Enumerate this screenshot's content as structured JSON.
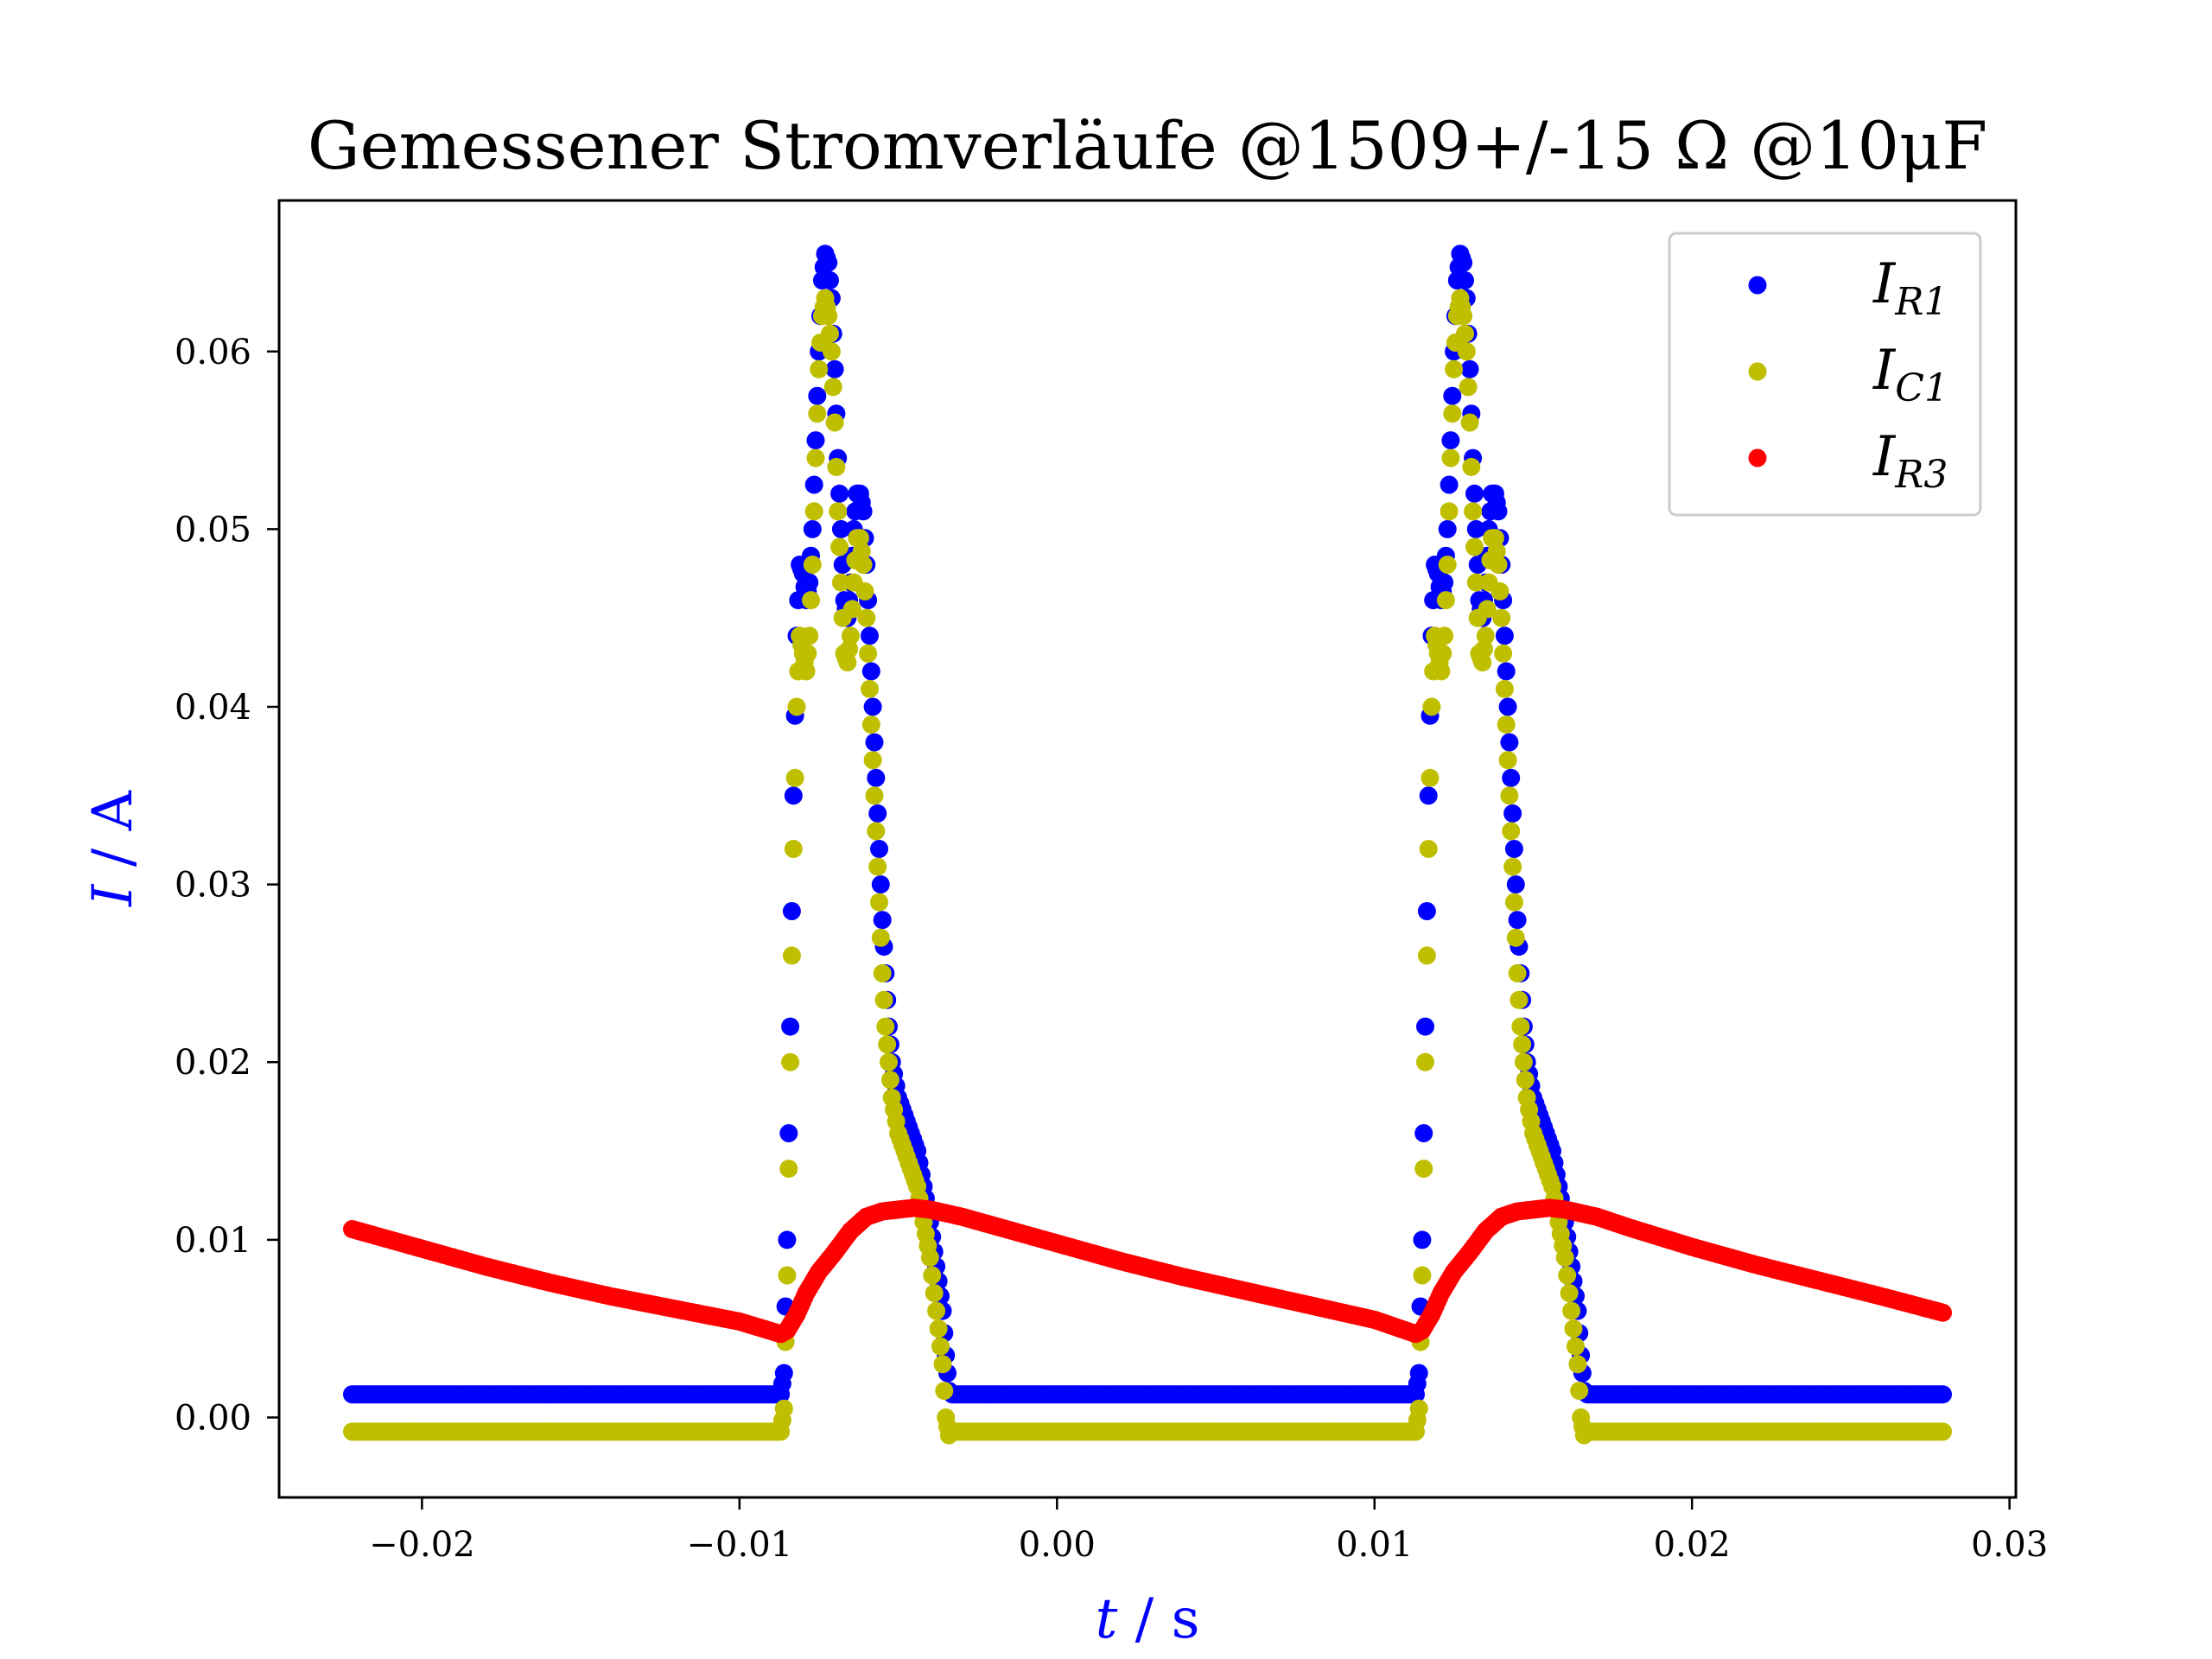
{
  "chart_data": {
    "type": "scatter",
    "title": "Gemessener Stromverläufe @1509+/-15 Ω @10μF",
    "xlabel": {
      "var": "t",
      "unit": "/ s"
    },
    "ylabel": {
      "var": "I",
      "unit": "/ A"
    },
    "xlim": [
      -0.0245,
      0.0302
    ],
    "ylim": [
      -0.0045,
      0.0685
    ],
    "xticks": [
      {
        "value": -0.02,
        "label": "−0.02"
      },
      {
        "value": -0.01,
        "label": "−0.01"
      },
      {
        "value": 0.0,
        "label": "0.00"
      },
      {
        "value": 0.01,
        "label": "0.01"
      },
      {
        "value": 0.02,
        "label": "0.02"
      },
      {
        "value": 0.03,
        "label": "0.03"
      }
    ],
    "yticks": [
      {
        "value": 0.0,
        "label": "0.00"
      },
      {
        "value": 0.01,
        "label": "0.01"
      },
      {
        "value": 0.02,
        "label": "0.02"
      },
      {
        "value": 0.03,
        "label": "0.03"
      },
      {
        "value": 0.04,
        "label": "0.04"
      },
      {
        "value": 0.05,
        "label": "0.05"
      },
      {
        "value": 0.06,
        "label": "0.06"
      }
    ],
    "grid": false,
    "legend_position": "top-right",
    "series": [
      {
        "name": "I_R1",
        "label_main": "I",
        "label_sub": "R1",
        "color": "#0000ff",
        "points": [
          [
            -0.0222,
            0.0013
          ],
          [
            -0.02,
            0.0013
          ],
          [
            -0.015,
            0.0013
          ],
          [
            -0.01,
            0.0013
          ],
          [
            -0.0087,
            0.0013
          ],
          [
            -0.0086,
            0.0025
          ],
          [
            -0.0085,
            0.01
          ],
          [
            -0.0084,
            0.022
          ],
          [
            -0.0083,
            0.035
          ],
          [
            -0.0082,
            0.044
          ],
          [
            -0.0081,
            0.048
          ],
          [
            -0.008,
            0.0475
          ],
          [
            -0.0079,
            0.046
          ],
          [
            -0.0078,
            0.047
          ],
          [
            -0.0077,
            0.05
          ],
          [
            -0.0076,
            0.055
          ],
          [
            -0.0075,
            0.06
          ],
          [
            -0.0074,
            0.064
          ],
          [
            -0.0073,
            0.0655
          ],
          [
            -0.0072,
            0.065
          ],
          [
            -0.0071,
            0.063
          ],
          [
            -0.007,
            0.059
          ],
          [
            -0.0069,
            0.054
          ],
          [
            -0.0068,
            0.05
          ],
          [
            -0.0067,
            0.046
          ],
          [
            -0.0066,
            0.045
          ],
          [
            -0.0065,
            0.047
          ],
          [
            -0.0064,
            0.05
          ],
          [
            -0.0063,
            0.052
          ],
          [
            -0.0062,
            0.052
          ],
          [
            -0.0061,
            0.051
          ],
          [
            -0.006,
            0.048
          ],
          [
            -0.0059,
            0.044
          ],
          [
            -0.0058,
            0.04
          ],
          [
            -0.0057,
            0.036
          ],
          [
            -0.0056,
            0.032
          ],
          [
            -0.0055,
            0.028
          ],
          [
            -0.0054,
            0.025
          ],
          [
            -0.0053,
            0.022
          ],
          [
            -0.0052,
            0.02
          ],
          [
            -0.005,
            0.018
          ],
          [
            -0.0048,
            0.017
          ],
          [
            -0.0046,
            0.016
          ],
          [
            -0.0044,
            0.015
          ],
          [
            -0.0042,
            0.013
          ],
          [
            -0.004,
            0.011
          ],
          [
            -0.0038,
            0.0085
          ],
          [
            -0.0036,
            0.006
          ],
          [
            -0.0035,
            0.0035
          ],
          [
            -0.0034,
            0.0015
          ],
          [
            -0.0033,
            0.0013
          ],
          [
            0.0,
            0.0013
          ],
          [
            0.005,
            0.0013
          ],
          [
            0.01,
            0.0013
          ],
          [
            0.0113,
            0.0013
          ],
          [
            0.0114,
            0.0025
          ],
          [
            0.0115,
            0.01
          ],
          [
            0.0116,
            0.022
          ],
          [
            0.0117,
            0.035
          ],
          [
            0.0118,
            0.044
          ],
          [
            0.0119,
            0.048
          ],
          [
            0.012,
            0.0475
          ],
          [
            0.0121,
            0.046
          ],
          [
            0.0122,
            0.047
          ],
          [
            0.0123,
            0.05
          ],
          [
            0.0124,
            0.055
          ],
          [
            0.0125,
            0.06
          ],
          [
            0.0126,
            0.064
          ],
          [
            0.0127,
            0.0655
          ],
          [
            0.0128,
            0.065
          ],
          [
            0.0129,
            0.063
          ],
          [
            0.013,
            0.059
          ],
          [
            0.0131,
            0.054
          ],
          [
            0.0132,
            0.05
          ],
          [
            0.0133,
            0.046
          ],
          [
            0.0134,
            0.045
          ],
          [
            0.0135,
            0.047
          ],
          [
            0.0136,
            0.05
          ],
          [
            0.0137,
            0.052
          ],
          [
            0.0138,
            0.052
          ],
          [
            0.0139,
            0.051
          ],
          [
            0.014,
            0.048
          ],
          [
            0.0141,
            0.044
          ],
          [
            0.0142,
            0.04
          ],
          [
            0.0143,
            0.036
          ],
          [
            0.0144,
            0.032
          ],
          [
            0.0145,
            0.028
          ],
          [
            0.0146,
            0.025
          ],
          [
            0.0147,
            0.022
          ],
          [
            0.0148,
            0.02
          ],
          [
            0.015,
            0.018
          ],
          [
            0.0152,
            0.017
          ],
          [
            0.0154,
            0.016
          ],
          [
            0.0156,
            0.015
          ],
          [
            0.0158,
            0.013
          ],
          [
            0.016,
            0.011
          ],
          [
            0.0162,
            0.0085
          ],
          [
            0.0164,
            0.006
          ],
          [
            0.0165,
            0.0035
          ],
          [
            0.0166,
            0.0015
          ],
          [
            0.0167,
            0.0013
          ],
          [
            0.02,
            0.0013
          ],
          [
            0.025,
            0.0013
          ],
          [
            0.0279,
            0.0013
          ]
        ]
      },
      {
        "name": "I_C1",
        "label_main": "I",
        "label_sub": "C1",
        "color": "#bfbf00",
        "points": [
          [
            -0.0222,
            -0.0008
          ],
          [
            -0.02,
            -0.0008
          ],
          [
            -0.015,
            -0.0008
          ],
          [
            -0.01,
            -0.0008
          ],
          [
            -0.0087,
            -0.0008
          ],
          [
            -0.0086,
            0.0005
          ],
          [
            -0.0085,
            0.008
          ],
          [
            -0.0084,
            0.02
          ],
          [
            -0.0083,
            0.032
          ],
          [
            -0.0082,
            0.04
          ],
          [
            -0.0081,
            0.044
          ],
          [
            -0.008,
            0.043
          ],
          [
            -0.0079,
            0.042
          ],
          [
            -0.0078,
            0.044
          ],
          [
            -0.0077,
            0.048
          ],
          [
            -0.0076,
            0.054
          ],
          [
            -0.0075,
            0.059
          ],
          [
            -0.0074,
            0.062
          ],
          [
            -0.0073,
            0.063
          ],
          [
            -0.0072,
            0.062
          ],
          [
            -0.0071,
            0.06
          ],
          [
            -0.007,
            0.056
          ],
          [
            -0.0069,
            0.051
          ],
          [
            -0.0068,
            0.047
          ],
          [
            -0.0067,
            0.043
          ],
          [
            -0.0066,
            0.0425
          ],
          [
            -0.0065,
            0.044
          ],
          [
            -0.0064,
            0.047
          ],
          [
            -0.0063,
            0.0495
          ],
          [
            -0.0062,
            0.0495
          ],
          [
            -0.0061,
            0.048
          ],
          [
            -0.006,
            0.045
          ],
          [
            -0.0059,
            0.041
          ],
          [
            -0.0058,
            0.037
          ],
          [
            -0.0057,
            0.033
          ],
          [
            -0.0056,
            0.029
          ],
          [
            -0.0055,
            0.025
          ],
          [
            -0.0054,
            0.022
          ],
          [
            -0.0053,
            0.02
          ],
          [
            -0.0052,
            0.018
          ],
          [
            -0.005,
            0.016
          ],
          [
            -0.0048,
            0.015
          ],
          [
            -0.0046,
            0.014
          ],
          [
            -0.0044,
            0.013
          ],
          [
            -0.0042,
            0.011
          ],
          [
            -0.004,
            0.009
          ],
          [
            -0.0038,
            0.006
          ],
          [
            -0.0036,
            0.003
          ],
          [
            -0.0035,
            0.0
          ],
          [
            -0.0034,
            -0.001
          ],
          [
            -0.0033,
            -0.0008
          ],
          [
            0.0,
            -0.0008
          ],
          [
            0.005,
            -0.0008
          ],
          [
            0.01,
            -0.0008
          ],
          [
            0.0113,
            -0.0008
          ],
          [
            0.0114,
            0.0005
          ],
          [
            0.0115,
            0.008
          ],
          [
            0.0116,
            0.02
          ],
          [
            0.0117,
            0.032
          ],
          [
            0.0118,
            0.04
          ],
          [
            0.0119,
            0.044
          ],
          [
            0.012,
            0.043
          ],
          [
            0.0121,
            0.042
          ],
          [
            0.0122,
            0.044
          ],
          [
            0.0123,
            0.048
          ],
          [
            0.0124,
            0.054
          ],
          [
            0.0125,
            0.059
          ],
          [
            0.0126,
            0.062
          ],
          [
            0.0127,
            0.063
          ],
          [
            0.0128,
            0.062
          ],
          [
            0.0129,
            0.06
          ],
          [
            0.013,
            0.056
          ],
          [
            0.0131,
            0.051
          ],
          [
            0.0132,
            0.047
          ],
          [
            0.0133,
            0.043
          ],
          [
            0.0134,
            0.0425
          ],
          [
            0.0135,
            0.044
          ],
          [
            0.0136,
            0.047
          ],
          [
            0.0137,
            0.0495
          ],
          [
            0.0138,
            0.0495
          ],
          [
            0.0139,
            0.048
          ],
          [
            0.014,
            0.045
          ],
          [
            0.0141,
            0.041
          ],
          [
            0.0142,
            0.037
          ],
          [
            0.0143,
            0.033
          ],
          [
            0.0144,
            0.029
          ],
          [
            0.0145,
            0.025
          ],
          [
            0.0146,
            0.022
          ],
          [
            0.0147,
            0.02
          ],
          [
            0.0148,
            0.018
          ],
          [
            0.015,
            0.016
          ],
          [
            0.0152,
            0.015
          ],
          [
            0.0154,
            0.014
          ],
          [
            0.0156,
            0.013
          ],
          [
            0.0158,
            0.011
          ],
          [
            0.016,
            0.009
          ],
          [
            0.0162,
            0.006
          ],
          [
            0.0164,
            0.003
          ],
          [
            0.0165,
            0.0
          ],
          [
            0.0166,
            -0.001
          ],
          [
            0.0167,
            -0.0008
          ],
          [
            0.02,
            -0.0008
          ],
          [
            0.025,
            -0.0008
          ],
          [
            0.0279,
            -0.0008
          ]
        ]
      },
      {
        "name": "I_R3",
        "label_main": "I",
        "label_sub": "R3",
        "color": "#ff0000",
        "points": [
          [
            -0.0222,
            0.0106
          ],
          [
            -0.02,
            0.0095
          ],
          [
            -0.018,
            0.0085
          ],
          [
            -0.016,
            0.0076
          ],
          [
            -0.014,
            0.0068
          ],
          [
            -0.012,
            0.0061
          ],
          [
            -0.01,
            0.0054
          ],
          [
            -0.0087,
            0.0047
          ],
          [
            -0.0085,
            0.0049
          ],
          [
            -0.0082,
            0.0058
          ],
          [
            -0.0079,
            0.007
          ],
          [
            -0.0075,
            0.0082
          ],
          [
            -0.007,
            0.0093
          ],
          [
            -0.0065,
            0.0105
          ],
          [
            -0.006,
            0.0113
          ],
          [
            -0.0055,
            0.0116
          ],
          [
            -0.005,
            0.0117
          ],
          [
            -0.0045,
            0.0118
          ],
          [
            -0.004,
            0.0117
          ],
          [
            -0.003,
            0.0113
          ],
          [
            -0.002,
            0.0108
          ],
          [
            0.0,
            0.0098
          ],
          [
            0.002,
            0.0088
          ],
          [
            0.004,
            0.0079
          ],
          [
            0.006,
            0.0071
          ],
          [
            0.008,
            0.0063
          ],
          [
            0.01,
            0.0055
          ],
          [
            0.0113,
            0.0047
          ],
          [
            0.0115,
            0.0049
          ],
          [
            0.0118,
            0.0058
          ],
          [
            0.0121,
            0.007
          ],
          [
            0.0125,
            0.0082
          ],
          [
            0.013,
            0.0093
          ],
          [
            0.0135,
            0.0105
          ],
          [
            0.014,
            0.0113
          ],
          [
            0.0145,
            0.0116
          ],
          [
            0.015,
            0.0117
          ],
          [
            0.0155,
            0.0118
          ],
          [
            0.016,
            0.0117
          ],
          [
            0.017,
            0.0113
          ],
          [
            0.018,
            0.0107
          ],
          [
            0.02,
            0.0096
          ],
          [
            0.022,
            0.0086
          ],
          [
            0.024,
            0.0077
          ],
          [
            0.026,
            0.0068
          ],
          [
            0.0279,
            0.0059
          ]
        ]
      }
    ]
  }
}
